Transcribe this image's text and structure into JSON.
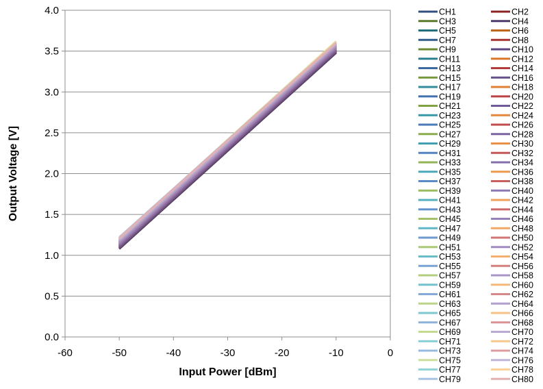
{
  "chart_data": {
    "type": "line",
    "title": "",
    "xlabel": "Input Power  [dBm]",
    "ylabel": "Output Voltage [V]",
    "xlim": [
      -60,
      0
    ],
    "ylim": [
      0.0,
      4.0
    ],
    "x_ticks": [
      "-60",
      "-50",
      "-40",
      "-30",
      "-20",
      "-10",
      "0"
    ],
    "y_ticks": [
      "0.0",
      "0.5",
      "1.0",
      "1.5",
      "2.0",
      "2.5",
      "3.0",
      "3.5",
      "4.0"
    ],
    "grid": "horizontal",
    "legend_position": "right",
    "x": [
      -50,
      -10
    ],
    "series": [
      {
        "name": "CH1",
        "color": "#2f4f7f",
        "values": [
          1.08,
          3.48
        ]
      },
      {
        "name": "CH2",
        "color": "#8b2323",
        "values": [
          1.08,
          3.48
        ]
      },
      {
        "name": "CH3",
        "color": "#5a7a2a",
        "values": [
          1.09,
          3.49
        ]
      },
      {
        "name": "CH4",
        "color": "#4b3a6b",
        "values": [
          1.08,
          3.48
        ]
      },
      {
        "name": "CH5",
        "color": "#1f6f7f",
        "values": [
          1.09,
          3.49
        ]
      },
      {
        "name": "CH6",
        "color": "#c0661a",
        "values": [
          1.09,
          3.49
        ]
      },
      {
        "name": "CH7",
        "color": "#2e5c8a",
        "values": [
          1.1,
          3.5
        ]
      },
      {
        "name": "CH8",
        "color": "#a83232",
        "values": [
          1.09,
          3.49
        ]
      },
      {
        "name": "CH9",
        "color": "#6a8a2e",
        "values": [
          1.1,
          3.5
        ]
      },
      {
        "name": "CH10",
        "color": "#5c4580",
        "values": [
          1.09,
          3.49
        ]
      },
      {
        "name": "CH11",
        "color": "#2a8090",
        "values": [
          1.1,
          3.5
        ]
      },
      {
        "name": "CH12",
        "color": "#d9762a",
        "values": [
          1.1,
          3.5
        ]
      },
      {
        "name": "CH13",
        "color": "#3c6aa0",
        "values": [
          1.11,
          3.51
        ]
      },
      {
        "name": "CH14",
        "color": "#b23c3c",
        "values": [
          1.1,
          3.5
        ]
      },
      {
        "name": "CH15",
        "color": "#76983a",
        "values": [
          1.11,
          3.51
        ]
      },
      {
        "name": "CH16",
        "color": "#66508c",
        "values": [
          1.1,
          3.5
        ]
      },
      {
        "name": "CH17",
        "color": "#308c9c",
        "values": [
          1.11,
          3.51
        ]
      },
      {
        "name": "CH18",
        "color": "#e07e32",
        "values": [
          1.11,
          3.51
        ]
      },
      {
        "name": "CH19",
        "color": "#4472b0",
        "values": [
          1.12,
          3.52
        ]
      },
      {
        "name": "CH20",
        "color": "#bc4444",
        "values": [
          1.11,
          3.51
        ]
      },
      {
        "name": "CH21",
        "color": "#80a242",
        "values": [
          1.12,
          3.52
        ]
      },
      {
        "name": "CH22",
        "color": "#705a98",
        "values": [
          1.11,
          3.51
        ]
      },
      {
        "name": "CH23",
        "color": "#3898a8",
        "values": [
          1.12,
          3.52
        ]
      },
      {
        "name": "CH24",
        "color": "#e6883c",
        "values": [
          1.12,
          3.52
        ]
      },
      {
        "name": "CH25",
        "color": "#4a7ab8",
        "values": [
          1.13,
          3.53
        ]
      },
      {
        "name": "CH26",
        "color": "#c04c4c",
        "values": [
          1.12,
          3.52
        ]
      },
      {
        "name": "CH27",
        "color": "#8aac4c",
        "values": [
          1.13,
          3.53
        ]
      },
      {
        "name": "CH28",
        "color": "#7a64a2",
        "values": [
          1.12,
          3.52
        ]
      },
      {
        "name": "CH29",
        "color": "#40a0b2",
        "values": [
          1.13,
          3.53
        ]
      },
      {
        "name": "CH30",
        "color": "#ea9046",
        "values": [
          1.13,
          3.53
        ]
      },
      {
        "name": "CH31",
        "color": "#5282c0",
        "values": [
          1.14,
          3.54
        ]
      },
      {
        "name": "CH32",
        "color": "#c45656",
        "values": [
          1.13,
          3.53
        ]
      },
      {
        "name": "CH33",
        "color": "#92b456",
        "values": [
          1.14,
          3.54
        ]
      },
      {
        "name": "CH34",
        "color": "#846eac",
        "values": [
          1.13,
          3.53
        ]
      },
      {
        "name": "CH35",
        "color": "#4aa8ba",
        "values": [
          1.14,
          3.54
        ]
      },
      {
        "name": "CH36",
        "color": "#ee9850",
        "values": [
          1.14,
          3.54
        ]
      },
      {
        "name": "CH37",
        "color": "#5a8ac6",
        "values": [
          1.15,
          3.55
        ]
      },
      {
        "name": "CH38",
        "color": "#c86060",
        "values": [
          1.14,
          3.54
        ]
      },
      {
        "name": "CH39",
        "color": "#9abc60",
        "values": [
          1.15,
          3.55
        ]
      },
      {
        "name": "CH40",
        "color": "#8e78b4",
        "values": [
          1.14,
          3.54
        ]
      },
      {
        "name": "CH41",
        "color": "#54b0c0",
        "values": [
          1.15,
          3.55
        ]
      },
      {
        "name": "CH42",
        "color": "#f0a05a",
        "values": [
          1.15,
          3.55
        ]
      },
      {
        "name": "CH43",
        "color": "#6292ca",
        "values": [
          1.16,
          3.56
        ]
      },
      {
        "name": "CH44",
        "color": "#cc6a6a",
        "values": [
          1.15,
          3.55
        ]
      },
      {
        "name": "CH45",
        "color": "#a2c26a",
        "values": [
          1.16,
          3.56
        ]
      },
      {
        "name": "CH46",
        "color": "#9882bc",
        "values": [
          1.15,
          3.55
        ]
      },
      {
        "name": "CH47",
        "color": "#5eb6c6",
        "values": [
          1.16,
          3.56
        ]
      },
      {
        "name": "CH48",
        "color": "#f2a864",
        "values": [
          1.16,
          3.56
        ]
      },
      {
        "name": "CH49",
        "color": "#6e9ace",
        "values": [
          1.17,
          3.57
        ]
      },
      {
        "name": "CH50",
        "color": "#d07474",
        "values": [
          1.16,
          3.56
        ]
      },
      {
        "name": "CH51",
        "color": "#aac874",
        "values": [
          1.17,
          3.57
        ]
      },
      {
        "name": "CH52",
        "color": "#a08cc2",
        "values": [
          1.16,
          3.56
        ]
      },
      {
        "name": "CH53",
        "color": "#68bcca",
        "values": [
          1.17,
          3.57
        ]
      },
      {
        "name": "CH54",
        "color": "#f4b06e",
        "values": [
          1.17,
          3.57
        ]
      },
      {
        "name": "CH55",
        "color": "#78a2d2",
        "values": [
          1.18,
          3.58
        ]
      },
      {
        "name": "CH56",
        "color": "#d47e7e",
        "values": [
          1.17,
          3.57
        ]
      },
      {
        "name": "CH57",
        "color": "#b2ce7e",
        "values": [
          1.18,
          3.58
        ]
      },
      {
        "name": "CH58",
        "color": "#a896c8",
        "values": [
          1.17,
          3.57
        ]
      },
      {
        "name": "CH59",
        "color": "#72c2ce",
        "values": [
          1.18,
          3.58
        ]
      },
      {
        "name": "CH60",
        "color": "#f6b878",
        "values": [
          1.18,
          3.58
        ]
      },
      {
        "name": "CH61",
        "color": "#82aad6",
        "values": [
          1.19,
          3.59
        ]
      },
      {
        "name": "CH62",
        "color": "#d88888",
        "values": [
          1.18,
          3.58
        ]
      },
      {
        "name": "CH63",
        "color": "#bad488",
        "values": [
          1.19,
          3.59
        ]
      },
      {
        "name": "CH64",
        "color": "#b0a0ce",
        "values": [
          1.18,
          3.58
        ]
      },
      {
        "name": "CH65",
        "color": "#7cc8d2",
        "values": [
          1.19,
          3.59
        ]
      },
      {
        "name": "CH66",
        "color": "#f8c082",
        "values": [
          1.19,
          3.59
        ]
      },
      {
        "name": "CH67",
        "color": "#8cb2da",
        "values": [
          1.2,
          3.6
        ]
      },
      {
        "name": "CH68",
        "color": "#dc9292",
        "values": [
          1.19,
          3.59
        ]
      },
      {
        "name": "CH69",
        "color": "#c2da92",
        "values": [
          1.2,
          3.6
        ]
      },
      {
        "name": "CH70",
        "color": "#b8aad4",
        "values": [
          1.19,
          3.59
        ]
      },
      {
        "name": "CH71",
        "color": "#86ced6",
        "values": [
          1.2,
          3.6
        ]
      },
      {
        "name": "CH72",
        "color": "#fac88c",
        "values": [
          1.2,
          3.6
        ]
      },
      {
        "name": "CH73",
        "color": "#96badf",
        "values": [
          1.21,
          3.61
        ]
      },
      {
        "name": "CH74",
        "color": "#e09c9c",
        "values": [
          1.2,
          3.6
        ]
      },
      {
        "name": "CH75",
        "color": "#cae09c",
        "values": [
          1.21,
          3.62
        ]
      },
      {
        "name": "CH76",
        "color": "#c0b4da",
        "values": [
          1.2,
          3.6
        ]
      },
      {
        "name": "CH77",
        "color": "#90d4da",
        "values": [
          1.21,
          3.61
        ]
      },
      {
        "name": "CH78",
        "color": "#fcd096",
        "values": [
          1.21,
          3.61
        ]
      },
      {
        "name": "CH79",
        "color": "#a8c4e4",
        "values": [
          1.22,
          3.6
        ]
      },
      {
        "name": "CH80",
        "color": "#e4b0b0",
        "values": [
          1.21,
          3.6
        ]
      }
    ]
  }
}
